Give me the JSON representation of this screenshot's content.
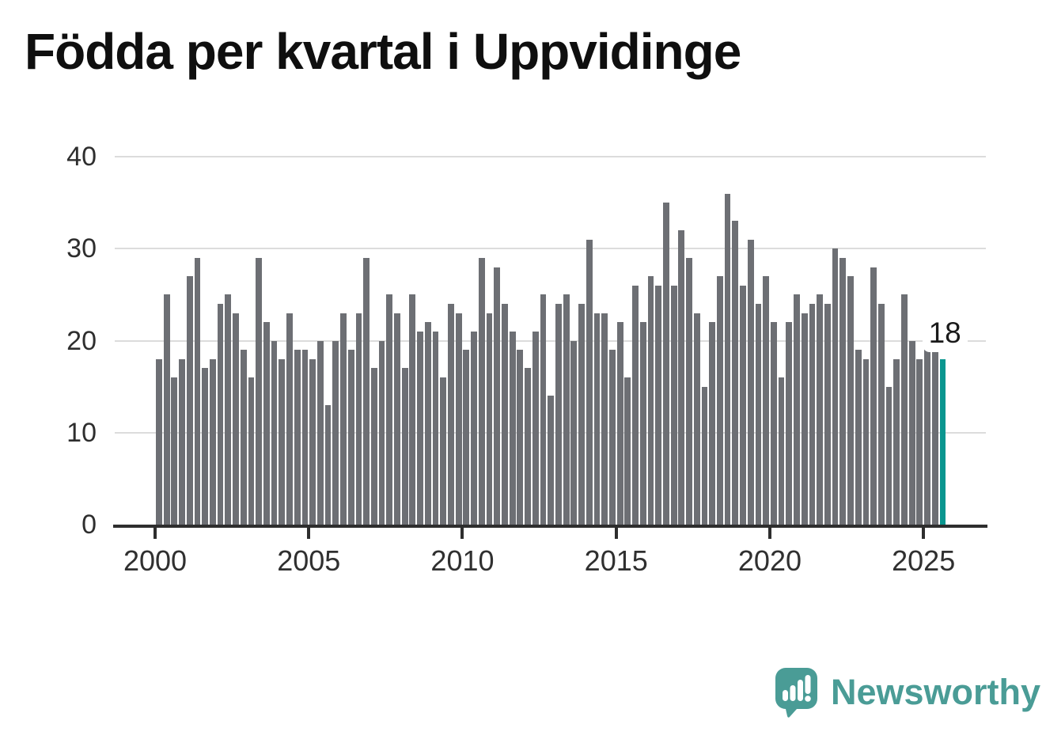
{
  "title": "Födda per kvartal i Uppvidinge",
  "branding": {
    "logo_text": "Newsworthy",
    "brand_color": "#4a9c96"
  },
  "chart_data": {
    "type": "bar",
    "title": "Födda per kvartal i Uppvidinge",
    "period": "quarterly",
    "x_start_year": 2000,
    "x_start_quarter": 1,
    "values": [
      18,
      25,
      16,
      18,
      27,
      29,
      17,
      18,
      24,
      25,
      23,
      19,
      16,
      29,
      22,
      20,
      18,
      23,
      19,
      19,
      18,
      20,
      13,
      20,
      23,
      19,
      23,
      29,
      17,
      20,
      25,
      23,
      17,
      25,
      21,
      22,
      21,
      16,
      24,
      23,
      19,
      21,
      29,
      23,
      28,
      24,
      21,
      19,
      17,
      21,
      25,
      14,
      24,
      25,
      20,
      24,
      31,
      23,
      23,
      19,
      22,
      16,
      26,
      22,
      27,
      26,
      35,
      26,
      32,
      29,
      23,
      15,
      22,
      27,
      36,
      33,
      26,
      31,
      24,
      27,
      22,
      16,
      22,
      25,
      23,
      24,
      25,
      24,
      30,
      29,
      27,
      19,
      18,
      28,
      24,
      15,
      18,
      25,
      20,
      18,
      22,
      19,
      18
    ],
    "highlight_index": 102,
    "highlight_value_label": "18",
    "bar_color": "#6d6f74",
    "highlight_color": "#0a968f",
    "grid_color": "#dcdcdc",
    "axis_color": "#2e2e2e",
    "xlabel": "",
    "ylabel": "",
    "ylim": [
      0,
      40
    ],
    "y_ticks": [
      0,
      10,
      20,
      30,
      40
    ],
    "x_ticks": [
      "2000",
      "2005",
      "2010",
      "2015",
      "2020",
      "2025"
    ],
    "grid": true,
    "legend": false
  }
}
